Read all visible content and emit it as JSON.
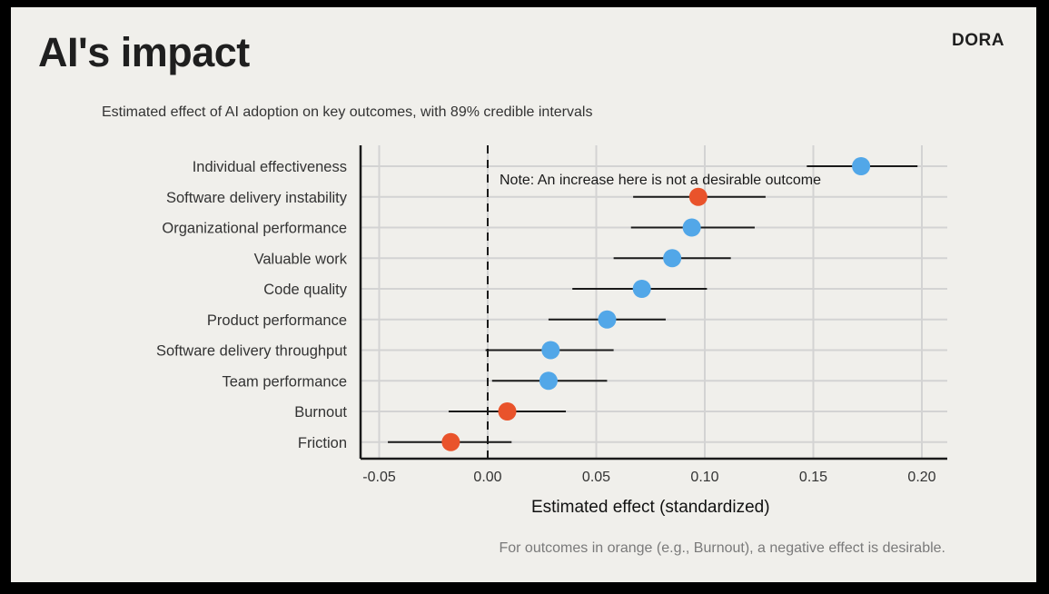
{
  "slide": {
    "title": "AI's impact",
    "logo": "DORA",
    "subtitle": "Estimated effect of AI adoption on key outcomes, with 89% credible intervals",
    "footnote": "For outcomes in orange (e.g., Burnout), a negative effect is desirable."
  },
  "colors": {
    "positive_good": "#52a7e8",
    "negative_good": "#e9532b",
    "background": "#f0efeb",
    "grid": "#d3d3d3",
    "axis": "#1a1a1a"
  },
  "chart_data": {
    "type": "scatter",
    "subtype": "dot-and-whisker",
    "title": "Estimated effect of AI adoption on key outcomes, with 89% credible intervals",
    "xlabel": "Estimated effect (standardized)",
    "ylabel": "",
    "xlim": [
      -0.06,
      0.21
    ],
    "xticks": [
      -0.05,
      0.0,
      0.05,
      0.1,
      0.15,
      0.2
    ],
    "xtick_labels": [
      "-0.05",
      "0.00",
      "0.05",
      "0.10",
      "0.15",
      "0.20"
    ],
    "grid": true,
    "reference_line": 0.0,
    "annotation": {
      "text": "Note: An increase here is not a desirable outcome",
      "attached_to": "Software delivery instability"
    },
    "outcomes": [
      {
        "label": "Individual effectiveness",
        "estimate": 0.172,
        "lower": 0.147,
        "upper": 0.198,
        "color": "blue"
      },
      {
        "label": "Software delivery instability",
        "estimate": 0.097,
        "lower": 0.067,
        "upper": 0.128,
        "color": "orange"
      },
      {
        "label": "Organizational performance",
        "estimate": 0.094,
        "lower": 0.066,
        "upper": 0.123,
        "color": "blue"
      },
      {
        "label": "Valuable work",
        "estimate": 0.085,
        "lower": 0.058,
        "upper": 0.112,
        "color": "blue"
      },
      {
        "label": "Code quality",
        "estimate": 0.071,
        "lower": 0.039,
        "upper": 0.101,
        "color": "blue"
      },
      {
        "label": "Product performance",
        "estimate": 0.055,
        "lower": 0.028,
        "upper": 0.082,
        "color": "blue"
      },
      {
        "label": "Software delivery throughput",
        "estimate": 0.029,
        "lower": -0.001,
        "upper": 0.058,
        "color": "blue"
      },
      {
        "label": "Team performance",
        "estimate": 0.028,
        "lower": 0.002,
        "upper": 0.055,
        "color": "blue"
      },
      {
        "label": "Burnout",
        "estimate": 0.009,
        "lower": -0.018,
        "upper": 0.036,
        "color": "orange"
      },
      {
        "label": "Friction",
        "estimate": -0.017,
        "lower": -0.046,
        "upper": 0.011,
        "color": "orange"
      }
    ]
  }
}
